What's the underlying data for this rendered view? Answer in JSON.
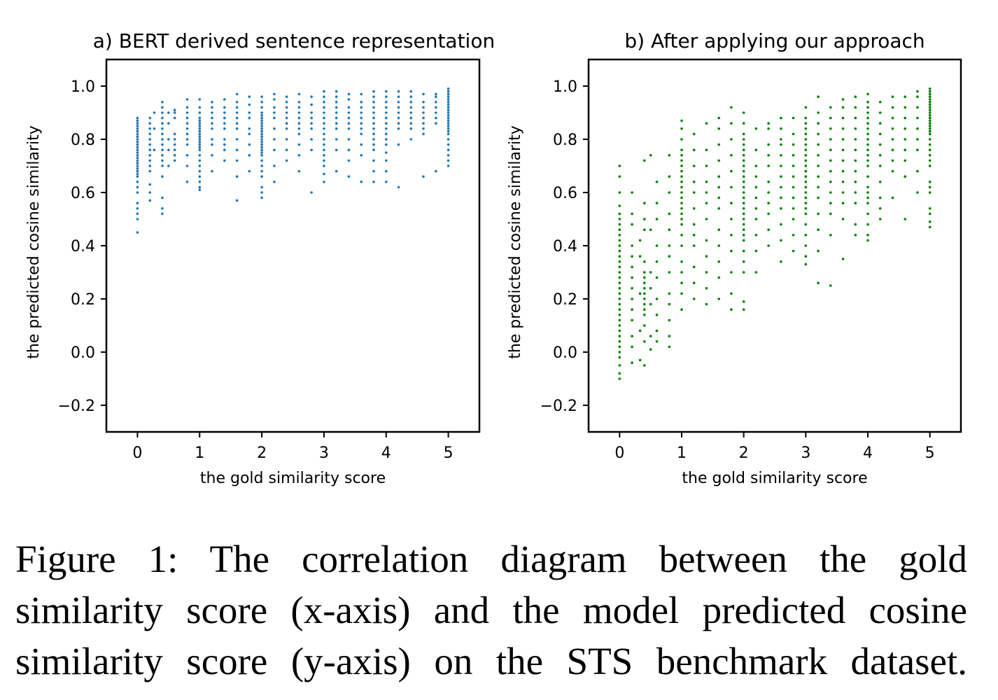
{
  "chart_data": [
    {
      "type": "scatter",
      "title": "a) BERT derived sentence representation",
      "xlabel": "the gold similarity score",
      "ylabel": "the predicted cosine similarity",
      "xlim": [
        -0.5,
        5.5
      ],
      "ylim": [
        -0.3,
        1.1
      ],
      "xticks": [
        "0",
        "1",
        "2",
        "3",
        "4",
        "5"
      ],
      "xtick_values": [
        0,
        1,
        2,
        3,
        4,
        5
      ],
      "yticks": [
        "−0.2",
        "0.0",
        "0.2",
        "0.4",
        "0.6",
        "0.8",
        "1.0"
      ],
      "ytick_values": [
        -0.2,
        0,
        0.2,
        0.4,
        0.6,
        0.8,
        1.0
      ],
      "grid": false,
      "color": "#1f77b4",
      "columns": [
        {
          "x": 0.0,
          "y": [
            0.45,
            0.5,
            0.52,
            0.54,
            0.56,
            0.6,
            0.62,
            0.64,
            0.66,
            0.67,
            0.68,
            0.69,
            0.7,
            0.71,
            0.72,
            0.73,
            0.74,
            0.75,
            0.76,
            0.77,
            0.78,
            0.79,
            0.8,
            0.81,
            0.82,
            0.83,
            0.84,
            0.85,
            0.86,
            0.87,
            0.88
          ]
        },
        {
          "x": 0.2,
          "y": [
            0.57,
            0.6,
            0.63,
            0.68,
            0.7,
            0.72,
            0.74,
            0.76,
            0.78,
            0.8,
            0.82,
            0.84,
            0.86,
            0.88
          ]
        },
        {
          "x": 0.27,
          "y": [
            0.76,
            0.84,
            0.9
          ]
        },
        {
          "x": 0.4,
          "y": [
            0.52,
            0.54,
            0.58,
            0.66,
            0.7,
            0.72,
            0.74,
            0.76,
            0.78,
            0.8,
            0.82,
            0.84,
            0.86,
            0.88,
            0.9,
            0.92,
            0.94
          ]
        },
        {
          "x": 0.5,
          "y": [
            0.7,
            0.76,
            0.8,
            0.86,
            0.9
          ]
        },
        {
          "x": 0.6,
          "y": [
            0.72,
            0.74,
            0.76,
            0.78,
            0.8,
            0.82,
            0.88,
            0.9,
            0.91
          ]
        },
        {
          "x": 0.8,
          "y": [
            0.64,
            0.7,
            0.74,
            0.78,
            0.8,
            0.82,
            0.84,
            0.86,
            0.88,
            0.9,
            0.92,
            0.95
          ]
        },
        {
          "x": 1.0,
          "y": [
            0.61,
            0.62,
            0.64,
            0.66,
            0.68,
            0.7,
            0.72,
            0.74,
            0.76,
            0.77,
            0.78,
            0.79,
            0.8,
            0.81,
            0.82,
            0.83,
            0.84,
            0.85,
            0.86,
            0.87,
            0.88,
            0.9,
            0.92,
            0.95
          ]
        },
        {
          "x": 1.2,
          "y": [
            0.68,
            0.74,
            0.78,
            0.8,
            0.84,
            0.86,
            0.88,
            0.9,
            0.92,
            0.94
          ]
        },
        {
          "x": 1.4,
          "y": [
            0.72,
            0.76,
            0.78,
            0.8,
            0.84,
            0.86,
            0.88,
            0.9,
            0.92,
            0.95
          ]
        },
        {
          "x": 1.6,
          "y": [
            0.57,
            0.66,
            0.72,
            0.76,
            0.8,
            0.84,
            0.86,
            0.88,
            0.9,
            0.92,
            0.94,
            0.97
          ]
        },
        {
          "x": 1.8,
          "y": [
            0.68,
            0.74,
            0.78,
            0.82,
            0.84,
            0.88,
            0.9,
            0.93,
            0.96
          ]
        },
        {
          "x": 2.0,
          "y": [
            0.58,
            0.6,
            0.62,
            0.66,
            0.68,
            0.7,
            0.72,
            0.74,
            0.75,
            0.76,
            0.77,
            0.78,
            0.79,
            0.8,
            0.81,
            0.82,
            0.83,
            0.84,
            0.85,
            0.86,
            0.87,
            0.88,
            0.89,
            0.9,
            0.92,
            0.94,
            0.96
          ]
        },
        {
          "x": 2.2,
          "y": [
            0.64,
            0.7,
            0.76,
            0.8,
            0.84,
            0.88,
            0.9,
            0.92,
            0.95,
            0.97
          ]
        },
        {
          "x": 2.4,
          "y": [
            0.72,
            0.76,
            0.8,
            0.84,
            0.86,
            0.88,
            0.9,
            0.92,
            0.94,
            0.96
          ]
        },
        {
          "x": 2.6,
          "y": [
            0.68,
            0.74,
            0.78,
            0.82,
            0.84,
            0.86,
            0.88,
            0.9,
            0.92,
            0.94,
            0.97
          ]
        },
        {
          "x": 2.8,
          "y": [
            0.6,
            0.76,
            0.8,
            0.84,
            0.86,
            0.88,
            0.9,
            0.93,
            0.96
          ]
        },
        {
          "x": 3.0,
          "y": [
            0.64,
            0.67,
            0.7,
            0.72,
            0.74,
            0.76,
            0.78,
            0.8,
            0.82,
            0.84,
            0.86,
            0.88,
            0.9,
            0.92,
            0.94,
            0.96,
            0.98
          ]
        },
        {
          "x": 3.2,
          "y": [
            0.68,
            0.76,
            0.8,
            0.84,
            0.86,
            0.88,
            0.9,
            0.92,
            0.94,
            0.96,
            0.98
          ]
        },
        {
          "x": 3.4,
          "y": [
            0.66,
            0.72,
            0.76,
            0.8,
            0.84,
            0.86,
            0.88,
            0.9,
            0.92,
            0.95,
            0.97
          ]
        },
        {
          "x": 3.6,
          "y": [
            0.64,
            0.74,
            0.78,
            0.82,
            0.84,
            0.86,
            0.88,
            0.9,
            0.92,
            0.94,
            0.97
          ]
        },
        {
          "x": 3.8,
          "y": [
            0.64,
            0.68,
            0.72,
            0.76,
            0.78,
            0.8,
            0.82,
            0.84,
            0.86,
            0.88,
            0.9,
            0.92,
            0.94,
            0.96,
            0.98
          ]
        },
        {
          "x": 4.0,
          "y": [
            0.64,
            0.68,
            0.72,
            0.75,
            0.78,
            0.8,
            0.82,
            0.84,
            0.86,
            0.88,
            0.9,
            0.92,
            0.94,
            0.96,
            0.98
          ]
        },
        {
          "x": 4.2,
          "y": [
            0.62,
            0.78,
            0.84,
            0.86,
            0.88,
            0.9,
            0.92,
            0.94,
            0.96,
            0.98
          ]
        },
        {
          "x": 4.4,
          "y": [
            0.8,
            0.84,
            0.86,
            0.88,
            0.9,
            0.92,
            0.94,
            0.96,
            0.98
          ]
        },
        {
          "x": 4.6,
          "y": [
            0.66,
            0.82,
            0.84,
            0.86,
            0.88,
            0.9,
            0.92,
            0.94,
            0.97
          ]
        },
        {
          "x": 4.8,
          "y": [
            0.68,
            0.86,
            0.88,
            0.9,
            0.92,
            0.94,
            0.96,
            0.97
          ]
        },
        {
          "x": 5.0,
          "y": [
            0.7,
            0.72,
            0.74,
            0.76,
            0.78,
            0.8,
            0.82,
            0.83,
            0.84,
            0.85,
            0.86,
            0.87,
            0.88,
            0.89,
            0.9,
            0.91,
            0.92,
            0.93,
            0.94,
            0.95,
            0.96,
            0.97,
            0.98,
            0.99
          ]
        }
      ]
    },
    {
      "type": "scatter",
      "title": "b) After applying our approach",
      "xlabel": "the gold similarity score",
      "ylabel": "the predicted cosine similarity",
      "xlim": [
        -0.5,
        5.5
      ],
      "ylim": [
        -0.3,
        1.1
      ],
      "xticks": [
        "0",
        "1",
        "2",
        "3",
        "4",
        "5"
      ],
      "xtick_values": [
        0,
        1,
        2,
        3,
        4,
        5
      ],
      "yticks": [
        "−0.2",
        "0.0",
        "0.2",
        "0.4",
        "0.6",
        "0.8",
        "1.0"
      ],
      "ytick_values": [
        -0.2,
        0,
        0.2,
        0.4,
        0.6,
        0.8,
        1.0
      ],
      "grid": false,
      "color": "#008000",
      "columns": [
        {
          "x": 0.0,
          "y": [
            -0.1,
            -0.08,
            -0.05,
            -0.02,
            0.0,
            0.02,
            0.04,
            0.06,
            0.08,
            0.1,
            0.12,
            0.14,
            0.16,
            0.18,
            0.2,
            0.22,
            0.24,
            0.26,
            0.28,
            0.3,
            0.32,
            0.34,
            0.36,
            0.38,
            0.4,
            0.42,
            0.44,
            0.46,
            0.48,
            0.5,
            0.52,
            0.55,
            0.6,
            0.66,
            0.7
          ]
        },
        {
          "x": 0.2,
          "y": [
            -0.04,
            0.02,
            0.06,
            0.12,
            0.16,
            0.2,
            0.24,
            0.28,
            0.32,
            0.36,
            0.4,
            0.48,
            0.52,
            0.6
          ]
        },
        {
          "x": 0.33,
          "y": [
            -0.03,
            0.08,
            0.22,
            0.36,
            0.42
          ]
        },
        {
          "x": 0.4,
          "y": [
            -0.05,
            0.04,
            0.1,
            0.14,
            0.16,
            0.18,
            0.2,
            0.22,
            0.24,
            0.26,
            0.28,
            0.3,
            0.34,
            0.46,
            0.5,
            0.56,
            0.72
          ]
        },
        {
          "x": 0.5,
          "y": [
            0.01,
            0.06,
            0.18,
            0.24,
            0.3,
            0.46,
            0.74
          ]
        },
        {
          "x": 0.6,
          "y": [
            0.04,
            0.08,
            0.14,
            0.2,
            0.28,
            0.34,
            0.4,
            0.5,
            0.56,
            0.64
          ]
        },
        {
          "x": 0.8,
          "y": [
            0.02,
            0.06,
            0.12,
            0.18,
            0.22,
            0.3,
            0.36,
            0.4,
            0.46,
            0.52,
            0.6,
            0.66,
            0.74
          ]
        },
        {
          "x": 1.0,
          "y": [
            0.16,
            0.22,
            0.26,
            0.3,
            0.34,
            0.4,
            0.44,
            0.48,
            0.5,
            0.52,
            0.54,
            0.56,
            0.58,
            0.6,
            0.62,
            0.64,
            0.66,
            0.68,
            0.7,
            0.72,
            0.74,
            0.76,
            0.8,
            0.84,
            0.87
          ]
        },
        {
          "x": 1.2,
          "y": [
            0.2,
            0.26,
            0.32,
            0.4,
            0.44,
            0.48,
            0.54,
            0.6,
            0.64,
            0.7,
            0.76,
            0.82
          ]
        },
        {
          "x": 1.4,
          "y": [
            0.18,
            0.24,
            0.3,
            0.36,
            0.42,
            0.5,
            0.56,
            0.6,
            0.64,
            0.7,
            0.76,
            0.86
          ]
        },
        {
          "x": 1.6,
          "y": [
            0.2,
            0.28,
            0.34,
            0.4,
            0.46,
            0.54,
            0.58,
            0.62,
            0.66,
            0.72,
            0.78,
            0.84,
            0.88
          ]
        },
        {
          "x": 1.8,
          "y": [
            0.16,
            0.22,
            0.3,
            0.38,
            0.44,
            0.5,
            0.56,
            0.62,
            0.68,
            0.74,
            0.8,
            0.86,
            0.92
          ]
        },
        {
          "x": 2.0,
          "y": [
            0.16,
            0.19,
            0.3,
            0.34,
            0.38,
            0.42,
            0.44,
            0.46,
            0.48,
            0.5,
            0.52,
            0.54,
            0.56,
            0.58,
            0.6,
            0.62,
            0.64,
            0.66,
            0.68,
            0.7,
            0.72,
            0.74,
            0.76,
            0.78,
            0.8,
            0.82,
            0.86,
            0.9
          ]
        },
        {
          "x": 2.2,
          "y": [
            0.3,
            0.38,
            0.44,
            0.5,
            0.54,
            0.58,
            0.62,
            0.66,
            0.7,
            0.76,
            0.84
          ]
        },
        {
          "x": 2.4,
          "y": [
            0.4,
            0.46,
            0.52,
            0.56,
            0.6,
            0.64,
            0.7,
            0.74,
            0.78,
            0.84,
            0.86
          ]
        },
        {
          "x": 2.6,
          "y": [
            0.34,
            0.42,
            0.48,
            0.54,
            0.58,
            0.62,
            0.66,
            0.7,
            0.74,
            0.78,
            0.8,
            0.84,
            0.88
          ]
        },
        {
          "x": 2.8,
          "y": [
            0.38,
            0.44,
            0.5,
            0.54,
            0.58,
            0.62,
            0.66,
            0.7,
            0.74,
            0.78,
            0.82,
            0.88
          ]
        },
        {
          "x": 3.0,
          "y": [
            0.33,
            0.36,
            0.4,
            0.44,
            0.48,
            0.52,
            0.54,
            0.56,
            0.58,
            0.6,
            0.62,
            0.64,
            0.66,
            0.68,
            0.7,
            0.72,
            0.74,
            0.76,
            0.78,
            0.8,
            0.82,
            0.84,
            0.86,
            0.88,
            0.92
          ]
        },
        {
          "x": 3.2,
          "y": [
            0.26,
            0.38,
            0.46,
            0.52,
            0.58,
            0.62,
            0.66,
            0.7,
            0.74,
            0.78,
            0.82,
            0.86,
            0.9,
            0.96
          ]
        },
        {
          "x": 3.4,
          "y": [
            0.25,
            0.44,
            0.52,
            0.56,
            0.6,
            0.64,
            0.68,
            0.72,
            0.76,
            0.8,
            0.84,
            0.88,
            0.92
          ]
        },
        {
          "x": 3.6,
          "y": [
            0.35,
            0.5,
            0.56,
            0.6,
            0.64,
            0.68,
            0.72,
            0.76,
            0.8,
            0.84,
            0.88,
            0.92,
            0.95
          ]
        },
        {
          "x": 3.8,
          "y": [
            0.44,
            0.48,
            0.56,
            0.6,
            0.64,
            0.68,
            0.72,
            0.76,
            0.8,
            0.84,
            0.88,
            0.92,
            0.96
          ]
        },
        {
          "x": 4.0,
          "y": [
            0.42,
            0.44,
            0.48,
            0.52,
            0.56,
            0.58,
            0.6,
            0.62,
            0.66,
            0.7,
            0.72,
            0.74,
            0.76,
            0.78,
            0.8,
            0.82,
            0.84,
            0.86,
            0.88,
            0.9,
            0.92,
            0.94,
            0.97
          ]
        },
        {
          "x": 4.2,
          "y": [
            0.5,
            0.54,
            0.58,
            0.64,
            0.7,
            0.74,
            0.78,
            0.82,
            0.86,
            0.9,
            0.94
          ]
        },
        {
          "x": 4.4,
          "y": [
            0.58,
            0.68,
            0.72,
            0.76,
            0.8,
            0.84,
            0.88,
            0.92,
            0.96
          ]
        },
        {
          "x": 4.6,
          "y": [
            0.5,
            0.66,
            0.72,
            0.76,
            0.8,
            0.84,
            0.88,
            0.92,
            0.96
          ]
        },
        {
          "x": 4.8,
          "y": [
            0.6,
            0.68,
            0.76,
            0.8,
            0.84,
            0.88,
            0.92,
            0.96,
            0.98
          ]
        },
        {
          "x": 5.0,
          "y": [
            0.47,
            0.49,
            0.52,
            0.54,
            0.6,
            0.62,
            0.64,
            0.7,
            0.72,
            0.74,
            0.76,
            0.78,
            0.8,
            0.82,
            0.83,
            0.84,
            0.85,
            0.86,
            0.87,
            0.88,
            0.89,
            0.9,
            0.91,
            0.92,
            0.93,
            0.94,
            0.95,
            0.96,
            0.97,
            0.98,
            0.99
          ]
        }
      ]
    }
  ],
  "caption": {
    "lines": [
      "Figure 1:  The correlation diagram between the gold",
      "similarity score (x-axis) and the model predicted cosine",
      "similarity score (y-axis) on the STS benchmark dataset."
    ]
  }
}
